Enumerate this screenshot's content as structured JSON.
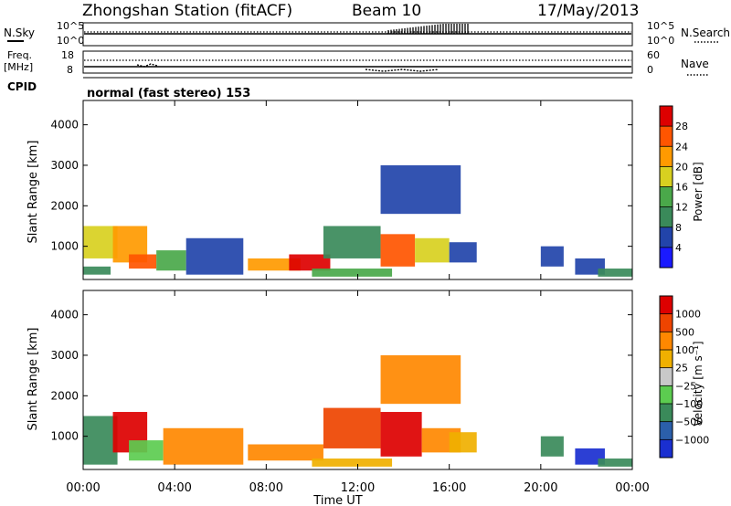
{
  "header": {
    "station": "Zhongshan Station (fitACF)",
    "beam": "Beam 10",
    "date": "17/May/2013"
  },
  "nsky_panel": {
    "left_label": "N.Sky",
    "right_label": "N.Search",
    "left_ticks": [
      "10^5",
      "10^0"
    ],
    "right_ticks": [
      "10^5",
      "10^0"
    ]
  },
  "freq_panel": {
    "left_label_1": "Freq.",
    "left_label_2": "[MHz]",
    "right_label": "Nave",
    "left_ticks": [
      "18",
      "8"
    ],
    "right_ticks": [
      "60",
      "0"
    ]
  },
  "cpid_panel": {
    "label": "CPID",
    "mode_text": "normal (fast stereo) 153"
  },
  "xaxis": {
    "label": "Time UT",
    "ticks": [
      "00:00",
      "04:00",
      "08:00",
      "12:00",
      "16:00",
      "20:00",
      "00:00"
    ]
  },
  "colors": {
    "power": [
      "#1a1aff",
      "#2244aa",
      "#3a8a5a",
      "#4aa84a",
      "#d8d020",
      "#ff9a00",
      "#ff5500",
      "#dd0000"
    ],
    "velocity": [
      "#1a2fd0",
      "#2b5faa",
      "#3a8a5a",
      "#5ccc50",
      "#c8c8c8",
      "#f0b000",
      "#ff8800",
      "#ee4400",
      "#dd0000"
    ]
  },
  "chart_data": [
    {
      "type": "heatmap",
      "title": "Power",
      "xlabel": "Time UT",
      "ylabel": "Slant Range [km]",
      "xlim": [
        0,
        24
      ],
      "ylim": [
        180,
        4600
      ],
      "yticks": [
        "4000",
        "3000",
        "2000",
        "1000"
      ],
      "colorbar_label": "Power [dB]",
      "colorbar_ticks": [
        "28",
        "24",
        "20",
        "16",
        "12",
        "8",
        "4"
      ],
      "colorbar_range": [
        0,
        32
      ],
      "patches": [
        {
          "t0": 0.0,
          "t1": 1.2,
          "r0": 300,
          "r1": 500,
          "level": 2
        },
        {
          "t0": 0.0,
          "t1": 1.5,
          "r0": 700,
          "r1": 1500,
          "level": 4
        },
        {
          "t0": 1.3,
          "t1": 2.8,
          "r0": 600,
          "r1": 1500,
          "level": 5
        },
        {
          "t0": 2.0,
          "t1": 3.2,
          "r0": 450,
          "r1": 800,
          "level": 6
        },
        {
          "t0": 3.2,
          "t1": 4.5,
          "r0": 400,
          "r1": 900,
          "level": 3
        },
        {
          "t0": 4.5,
          "t1": 7.0,
          "r0": 300,
          "r1": 1200,
          "level": 1
        },
        {
          "t0": 7.2,
          "t1": 9.5,
          "r0": 400,
          "r1": 700,
          "level": 5
        },
        {
          "t0": 9.0,
          "t1": 10.8,
          "r0": 400,
          "r1": 800,
          "level": 7
        },
        {
          "t0": 10.5,
          "t1": 13.0,
          "r0": 700,
          "r1": 1500,
          "level": 2
        },
        {
          "t0": 10.0,
          "t1": 13.5,
          "r0": 250,
          "r1": 450,
          "level": 3
        },
        {
          "t0": 13.0,
          "t1": 14.5,
          "r0": 500,
          "r1": 1300,
          "level": 6
        },
        {
          "t0": 14.5,
          "t1": 16.0,
          "r0": 600,
          "r1": 1200,
          "level": 4
        },
        {
          "t0": 16.0,
          "t1": 17.2,
          "r0": 600,
          "r1": 1100,
          "level": 1
        },
        {
          "t0": 13.0,
          "t1": 16.5,
          "r0": 1800,
          "r1": 3000,
          "level": 1
        },
        {
          "t0": 20.0,
          "t1": 21.0,
          "r0": 500,
          "r1": 1000,
          "level": 1
        },
        {
          "t0": 21.5,
          "t1": 22.8,
          "r0": 300,
          "r1": 700,
          "level": 1
        },
        {
          "t0": 22.5,
          "t1": 24.0,
          "r0": 250,
          "r1": 450,
          "level": 2
        }
      ]
    },
    {
      "type": "heatmap",
      "title": "Velocity",
      "xlabel": "Time UT",
      "ylabel": "Slant Range [km]",
      "xlim": [
        0,
        24
      ],
      "ylim": [
        180,
        4600
      ],
      "yticks": [
        "4000",
        "3000",
        "2000",
        "1000"
      ],
      "colorbar_label": "Velocity [m s⁻¹]",
      "colorbar_ticks": [
        "1000",
        "500",
        "100",
        "25",
        "−25",
        "−100",
        "−500",
        "−1000"
      ],
      "colorbar_range": [
        -1500,
        1500
      ],
      "patches": [
        {
          "t0": 0.0,
          "t1": 1.5,
          "r0": 300,
          "r1": 1500,
          "level": 2
        },
        {
          "t0": 1.3,
          "t1": 2.8,
          "r0": 600,
          "r1": 1600,
          "level": 8
        },
        {
          "t0": 2.0,
          "t1": 3.5,
          "r0": 400,
          "r1": 900,
          "level": 3
        },
        {
          "t0": 3.5,
          "t1": 7.0,
          "r0": 300,
          "r1": 1200,
          "level": 6
        },
        {
          "t0": 7.2,
          "t1": 10.5,
          "r0": 400,
          "r1": 800,
          "level": 6
        },
        {
          "t0": 10.5,
          "t1": 13.0,
          "r0": 700,
          "r1": 1700,
          "level": 7
        },
        {
          "t0": 10.0,
          "t1": 13.5,
          "r0": 250,
          "r1": 450,
          "level": 5
        },
        {
          "t0": 13.0,
          "t1": 14.8,
          "r0": 500,
          "r1": 1600,
          "level": 8
        },
        {
          "t0": 14.8,
          "t1": 16.5,
          "r0": 600,
          "r1": 1200,
          "level": 6
        },
        {
          "t0": 16.0,
          "t1": 17.2,
          "r0": 600,
          "r1": 1100,
          "level": 5
        },
        {
          "t0": 13.0,
          "t1": 16.5,
          "r0": 1800,
          "r1": 3000,
          "level": 6
        },
        {
          "t0": 20.0,
          "t1": 21.0,
          "r0": 500,
          "r1": 1000,
          "level": 2
        },
        {
          "t0": 21.5,
          "t1": 22.8,
          "r0": 300,
          "r1": 700,
          "level": 0
        },
        {
          "t0": 22.5,
          "t1": 24.0,
          "r0": 250,
          "r1": 450,
          "level": 2
        }
      ]
    }
  ]
}
